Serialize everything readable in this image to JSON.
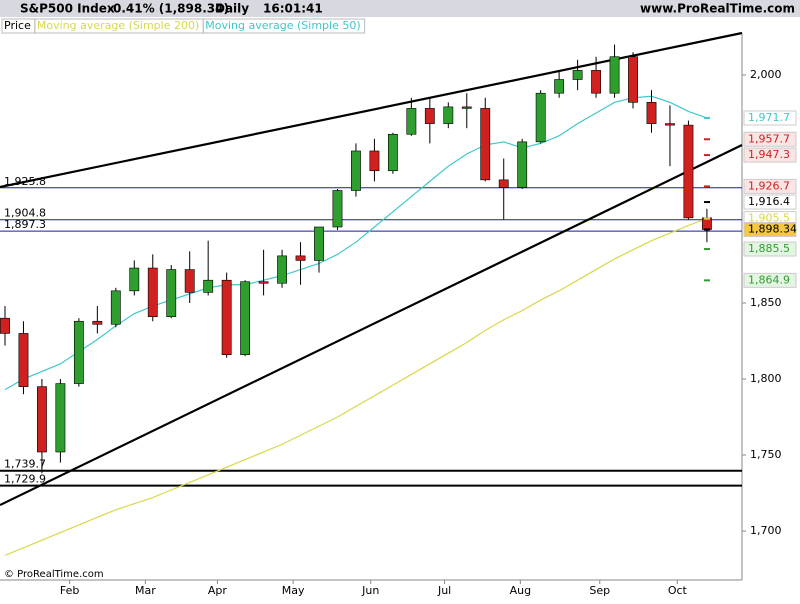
{
  "chart_data": {
    "type": "candlestick",
    "title": "S&P500 Index",
    "change": "-0.41% (1,898.34)",
    "period": "Daily",
    "time": "16:01:41",
    "site": "www.ProRealTime.com",
    "footer": "© ProRealTime.com",
    "x": [
      0,
      1,
      2,
      3,
      4,
      5,
      6,
      7,
      8,
      9,
      10,
      11,
      12,
      13,
      14,
      15,
      16,
      17,
      18,
      19,
      20,
      21,
      22,
      23,
      24,
      25,
      26,
      27,
      28,
      29,
      30,
      31,
      32,
      33,
      34,
      35,
      36,
      37,
      38
    ],
    "xlim": [
      -0.27,
      39.9
    ],
    "xticks": [
      {
        "value": 3.5,
        "label": "Feb"
      },
      {
        "value": 7.6,
        "label": "Mar"
      },
      {
        "value": 11.5,
        "label": "Apr"
      },
      {
        "value": 15.6,
        "label": "May"
      },
      {
        "value": 19.8,
        "label": "Jun"
      },
      {
        "value": 23.8,
        "label": "Jul"
      },
      {
        "value": 27.9,
        "label": "Aug"
      },
      {
        "value": 32.2,
        "label": "Sep"
      },
      {
        "value": 36.4,
        "label": "Oct"
      }
    ],
    "ylim": [
      1667.8,
      2027.6
    ],
    "yticks": [
      {
        "value": 1700,
        "label": "1,700"
      },
      {
        "value": 1750,
        "label": "1,750"
      },
      {
        "value": 1800,
        "label": "1,800"
      },
      {
        "value": 1850,
        "label": "1,850"
      },
      {
        "value": 2000,
        "label": "2,000"
      }
    ],
    "price": {
      "name": "Price",
      "up_color": "#2e9e2e",
      "down_color": "#d02020",
      "open": [
        1840,
        1830,
        1795,
        1752,
        1797,
        1838,
        1836,
        1858,
        1873,
        1841,
        1872,
        1857,
        1865,
        1816,
        1864,
        1863,
        1881,
        1878,
        1900,
        1924,
        1950,
        1937,
        1961,
        1978,
        1968,
        1979,
        1978,
        1931,
        1926,
        1956,
        1988,
        1997,
        2003,
        1988,
        2012,
        1982,
        1968,
        1967,
        1906
      ],
      "high": [
        1848,
        1838,
        1800,
        1800,
        1840,
        1848,
        1860,
        1878,
        1882,
        1875,
        1884,
        1891,
        1870,
        1865,
        1885,
        1885,
        1890,
        1900,
        1925,
        1955,
        1958,
        1962,
        1985,
        1985,
        1982,
        1988,
        1985,
        1945,
        1958,
        1990,
        2002,
        2010,
        2012,
        2020,
        2015,
        1990,
        1980,
        1970,
        1912
      ],
      "low": [
        1822,
        1790,
        1738,
        1745,
        1795,
        1830,
        1834,
        1855,
        1838,
        1840,
        1850,
        1855,
        1814,
        1815,
        1855,
        1860,
        1862,
        1870,
        1898,
        1920,
        1930,
        1935,
        1960,
        1955,
        1965,
        1965,
        1930,
        1905,
        1925,
        1955,
        1985,
        1990,
        1985,
        1985,
        1978,
        1962,
        1940,
        1905,
        1890
      ],
      "close": [
        1830,
        1795,
        1752,
        1797,
        1838,
        1836,
        1858,
        1873,
        1841,
        1872,
        1857,
        1865,
        1816,
        1864,
        1863,
        1881,
        1878,
        1900,
        1924,
        1950,
        1937,
        1961,
        1978,
        1968,
        1979,
        1978,
        1931,
        1926,
        1956,
        1988,
        1997,
        2003,
        1988,
        2012,
        1982,
        1968,
        1967,
        1906,
        1898.34
      ]
    },
    "series": [
      {
        "name": "Moving average (Simple 200)",
        "color": "#d8d84a",
        "values": [
          1684,
          1689,
          1694,
          1699,
          1704,
          1709,
          1714,
          1718,
          1722,
          1727,
          1732,
          1737,
          1742,
          1747,
          1752,
          1757,
          1763,
          1769,
          1775,
          1782,
          1789,
          1796,
          1803,
          1810,
          1817,
          1824,
          1832,
          1839,
          1845,
          1852,
          1858,
          1865,
          1872,
          1879,
          1885,
          1891,
          1896,
          1901,
          1905.5
        ]
      },
      {
        "name": "Moving average (Simple 50)",
        "color": "#3ec8c8",
        "values": [
          1793,
          1800,
          1805,
          1810,
          1818,
          1826,
          1835,
          1843,
          1848,
          1852,
          1856,
          1860,
          1862,
          1862,
          1865,
          1868,
          1872,
          1876,
          1882,
          1890,
          1900,
          1910,
          1920,
          1930,
          1940,
          1948,
          1954,
          1956,
          1952,
          1955,
          1960,
          1968,
          1975,
          1982,
          1985,
          1986,
          1982,
          1976,
          1971.7
        ]
      }
    ],
    "trendlines": [
      {
        "x": [
          -0.27,
          39.9
        ],
        "values": [
          1926.3,
          2027.6
        ],
        "color": "#000000"
      },
      {
        "x": [
          -0.27,
          39.9
        ],
        "values": [
          1717.1,
          1953.9
        ],
        "color": "#000000"
      }
    ],
    "hlines": [
      {
        "value": 1925.8,
        "label": "1,925.8",
        "color": "#1a1aa0"
      },
      {
        "value": 1904.8,
        "label": "1,904.8",
        "color": "#1a1aa0"
      },
      {
        "value": 1897.3,
        "label": "1,897.3",
        "color": "#1a1aa0"
      },
      {
        "value": 1739.7,
        "label": "1,739.7",
        "color": "#000000"
      },
      {
        "value": 1729.9,
        "label": "1,729.9",
        "color": "#000000"
      }
    ],
    "levels": [
      {
        "value": 1971.7,
        "label": "1,971.7",
        "color": "#3ec8c8",
        "bg": "#ffffff"
      },
      {
        "value": 1957.7,
        "label": "1,957.7",
        "color": "#d02020",
        "bg": "#fbe4e4"
      },
      {
        "value": 1947.3,
        "label": "1,947.3",
        "color": "#d02020",
        "bg": "#fbe4e4"
      },
      {
        "value": 1926.7,
        "label": "1,926.7",
        "color": "#d02020",
        "bg": "#fbe4e4"
      },
      {
        "value": 1916.4,
        "label": "1,916.4",
        "color": "#000000",
        "bg": "#ffffff"
      },
      {
        "value": 1905.5,
        "label": "1,905.5",
        "color": "#d8d84a",
        "bg": "#ffffff"
      },
      {
        "value": 1898.34,
        "label": "1,898.34",
        "color": "#000000",
        "bg": "#f5c842"
      },
      {
        "value": 1885.5,
        "label": "1,885.5",
        "color": "#2e9e2e",
        "bg": "#e4f5e4"
      },
      {
        "value": 1864.9,
        "label": "1,864.9",
        "color": "#2e9e2e",
        "bg": "#e4f5e4"
      }
    ]
  }
}
